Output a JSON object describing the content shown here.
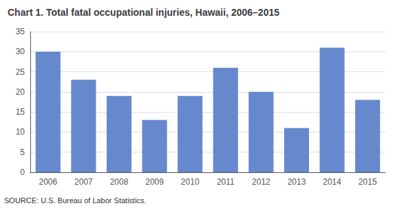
{
  "chart_data": {
    "type": "bar",
    "title": "Chart 1. Total fatal occupational injuries, Hawaii, 2006–2015",
    "categories": [
      "2006",
      "2007",
      "2008",
      "2009",
      "2010",
      "2011",
      "2012",
      "2013",
      "2014",
      "2015"
    ],
    "values": [
      30,
      23,
      19,
      13,
      19,
      26,
      20,
      11,
      31,
      18
    ],
    "color": "#6688CC",
    "ylim": [
      0,
      35
    ],
    "yticks": [
      0,
      5,
      10,
      15,
      20,
      25,
      30,
      35
    ],
    "grid": true,
    "annotations": [
      "SOURCE: U.S. Bureau of Labor Statistics."
    ]
  }
}
